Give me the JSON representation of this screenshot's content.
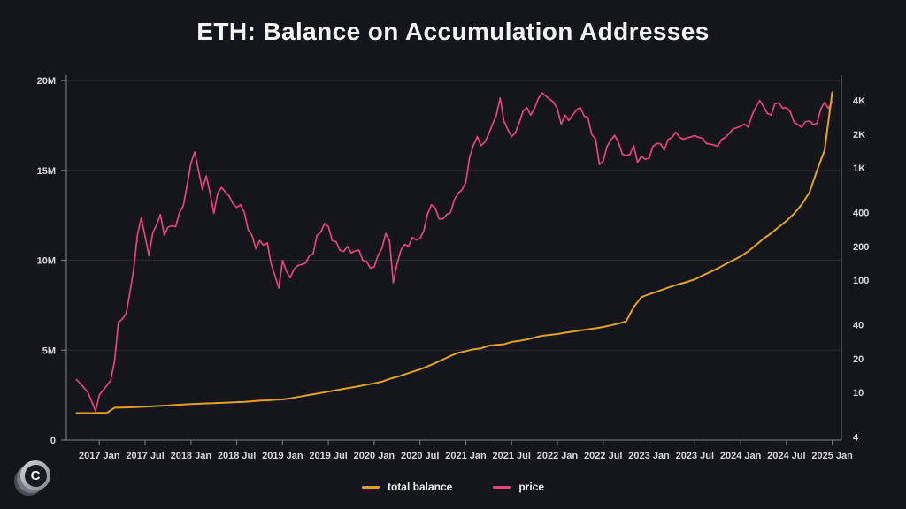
{
  "colors": {
    "background": "#15151c",
    "title_text": "#f3f3f6",
    "axis": "#6e6e77",
    "grid": "#2c2c34",
    "tick_text": "#d6d6db",
    "balance_line": "#e1a326",
    "price_line": "#e5447c"
  },
  "logo": {
    "letter": "C"
  },
  "chart_data": {
    "type": "line",
    "title": "ETH: Balance on Accumulation Addresses",
    "grid": true,
    "legend_position": "bottom-center",
    "x_axis": {
      "min": 2016.64,
      "max": 2025.1,
      "ticks": [
        {
          "t": 2017.0,
          "label": "2017 Jan"
        },
        {
          "t": 2017.5,
          "label": "2017 Jul"
        },
        {
          "t": 2018.0,
          "label": "2018 Jan"
        },
        {
          "t": 2018.5,
          "label": "2018 Jul"
        },
        {
          "t": 2019.0,
          "label": "2019 Jan"
        },
        {
          "t": 2019.5,
          "label": "2019 Jul"
        },
        {
          "t": 2020.0,
          "label": "2020 Jan"
        },
        {
          "t": 2020.5,
          "label": "2020 Jul"
        },
        {
          "t": 2021.0,
          "label": "2021 Jan"
        },
        {
          "t": 2021.5,
          "label": "2021 Jul"
        },
        {
          "t": 2022.0,
          "label": "2022 Jan"
        },
        {
          "t": 2022.5,
          "label": "2022 Jul"
        },
        {
          "t": 2023.0,
          "label": "2023 Jan"
        },
        {
          "t": 2023.5,
          "label": "2023 Jul"
        },
        {
          "t": 2024.0,
          "label": "2024 Jan"
        },
        {
          "t": 2024.5,
          "label": "2024 Jul"
        },
        {
          "t": 2025.0,
          "label": "2025 Jan"
        }
      ]
    },
    "y_left": {
      "scale": "linear",
      "unit": "ETH (millions)",
      "min": 0,
      "max": 20.3,
      "ticks": [
        {
          "v": 0,
          "label": "0"
        },
        {
          "v": 5,
          "label": "5M"
        },
        {
          "v": 10,
          "label": "10M"
        },
        {
          "v": 15,
          "label": "15M"
        },
        {
          "v": 20,
          "label": "20M"
        }
      ]
    },
    "y_right": {
      "scale": "log",
      "unit": "USD",
      "min": 3.76,
      "max": 6712,
      "ticks": [
        {
          "v": 4,
          "label": "4"
        },
        {
          "v": 10,
          "label": "10"
        },
        {
          "v": 20,
          "label": "20"
        },
        {
          "v": 40,
          "label": "40"
        },
        {
          "v": 100,
          "label": "100"
        },
        {
          "v": 200,
          "label": "200"
        },
        {
          "v": 400,
          "label": "400"
        },
        {
          "v": 1000,
          "label": "1K"
        },
        {
          "v": 2000,
          "label": "2K"
        },
        {
          "v": 4000,
          "label": "4K"
        }
      ]
    },
    "series": [
      {
        "name": "price",
        "axis": "right",
        "color": "#e5447c",
        "unit": "USD",
        "start": 2016.75,
        "step_years": 0.0416667,
        "values": [
          13,
          12,
          11,
          10,
          8.3,
          6.8,
          9.5,
          10.5,
          11.5,
          12.8,
          19,
          42,
          45,
          50,
          77,
          125,
          255,
          360,
          245,
          165,
          265,
          310,
          385,
          252,
          297,
          305,
          300,
          400,
          460,
          700,
          1100,
          1390,
          935,
          640,
          850,
          600,
          395,
          590,
          670,
          610,
          560,
          480,
          445,
          470,
          400,
          280,
          250,
          190,
          225,
          205,
          215,
          140,
          110,
          85,
          150,
          120,
          105,
          125,
          135,
          138,
          142,
          165,
          172,
          250,
          268,
          320,
          300,
          225,
          220,
          185,
          180,
          200,
          175,
          182,
          185,
          150,
          147,
          128,
          131,
          166,
          190,
          260,
          225,
          95,
          140,
          185,
          208,
          200,
          240,
          228,
          235,
          275,
          390,
          470,
          440,
          350,
          352,
          385,
          400,
          520,
          595,
          640,
          745,
          1250,
          1600,
          1900,
          1580,
          1700,
          2000,
          2450,
          2950,
          4200,
          2600,
          2200,
          1900,
          2050,
          2550,
          3200,
          3450,
          2950,
          3400,
          4150,
          4650,
          4350,
          4100,
          3850,
          3350,
          2450,
          2950,
          2650,
          2950,
          3300,
          3450,
          2900,
          2800,
          1990,
          1800,
          1070,
          1150,
          1550,
          1780,
          1950,
          1700,
          1330,
          1290,
          1320,
          1580,
          1120,
          1270,
          1195,
          1220,
          1550,
          1650,
          1640,
          1440,
          1790,
          1860,
          2080,
          1880,
          1800,
          1850,
          1890,
          1940,
          1870,
          1840,
          1650,
          1630,
          1600,
          1560,
          1790,
          1870,
          2020,
          2230,
          2280,
          2350,
          2460,
          2310,
          2960,
          3480,
          3990,
          3520,
          3060,
          2950,
          3740,
          3810,
          3400,
          3450,
          3170,
          2550,
          2430,
          2300,
          2580,
          2620,
          2440,
          2500,
          3350,
          3850,
          3400,
          3900
        ]
      },
      {
        "name": "total balance",
        "axis": "left",
        "color": "#e1a326",
        "unit": "M ETH",
        "start": 2016.75,
        "step_years": 0.0833333,
        "values": [
          1.5,
          1.5,
          1.5,
          1.51,
          1.52,
          1.8,
          1.81,
          1.82,
          1.84,
          1.86,
          1.88,
          1.9,
          1.92,
          1.95,
          1.98,
          2.0,
          2.02,
          2.04,
          2.05,
          2.07,
          2.09,
          2.11,
          2.13,
          2.16,
          2.19,
          2.21,
          2.24,
          2.26,
          2.32,
          2.4,
          2.47,
          2.55,
          2.62,
          2.7,
          2.77,
          2.85,
          2.92,
          3.0,
          3.08,
          3.15,
          3.25,
          3.4,
          3.52,
          3.65,
          3.8,
          3.93,
          4.1,
          4.28,
          4.48,
          4.68,
          4.85,
          4.95,
          5.05,
          5.1,
          5.25,
          5.3,
          5.33,
          5.46,
          5.52,
          5.6,
          5.7,
          5.8,
          5.85,
          5.9,
          5.97,
          6.03,
          6.1,
          6.16,
          6.22,
          6.29,
          6.38,
          6.48,
          6.6,
          7.4,
          7.95,
          8.11,
          8.25,
          8.4,
          8.55,
          8.68,
          8.8,
          8.94,
          9.15,
          9.35,
          9.55,
          9.78,
          10.0,
          10.22,
          10.5,
          10.85,
          11.2,
          11.5,
          11.85,
          12.19,
          12.6,
          13.1,
          13.76,
          14.99,
          16.12,
          19.35
        ]
      }
    ]
  }
}
